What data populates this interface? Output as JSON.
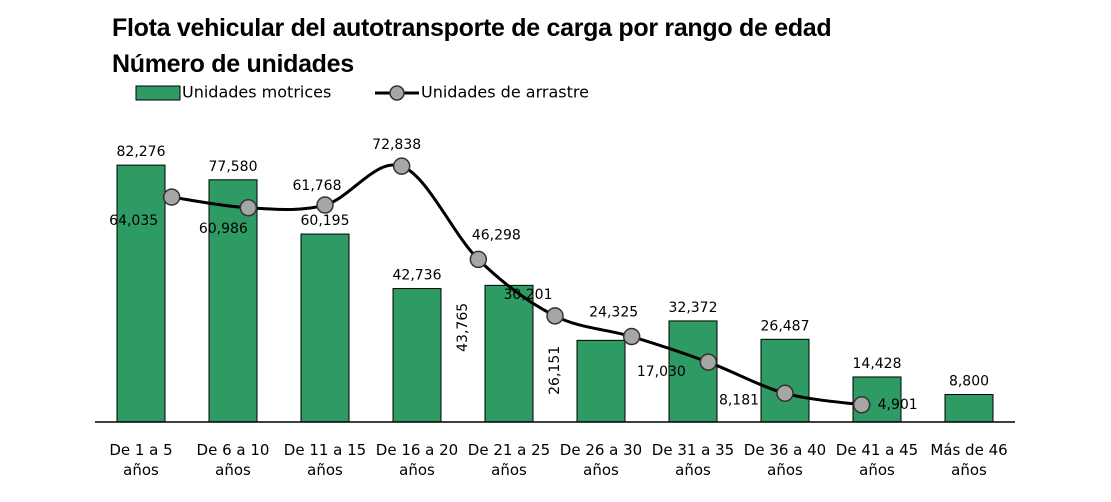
{
  "chart_data": {
    "type": "bar_line",
    "title": "Flota vehicular del autotransporte de carga por rango de edad",
    "subtitle": "Número de unidades",
    "categories": [
      "De 1 a 5 años",
      "De 6 a 10 años",
      "De 11 a 15 años",
      "De 16 a 20 años",
      "De 21 a 25 años",
      "De 26 a 30 años",
      "De 31 a 35 años",
      "De 36 a 40 años",
      "De 41 a 45 años",
      "Más de 46 años"
    ],
    "series": [
      {
        "name": "Unidades motrices",
        "type": "bar",
        "color": "#2e9a64",
        "values": [
          82276,
          77580,
          60195,
          42736,
          43765,
          26151,
          32372,
          26487,
          14428,
          8800
        ],
        "value_labels": [
          "82,276",
          "77,580",
          "60,195",
          "42,736",
          "43,765",
          "26,151",
          "32,372",
          "26,487",
          "14,428",
          "8,800"
        ]
      },
      {
        "name": "Unidades de arrastre",
        "type": "line",
        "axis": "y2",
        "color": "#000000",
        "marker_color": "#a6a6a6",
        "values": [
          64035,
          60986,
          61768,
          72838,
          46298,
          30201,
          24325,
          17030,
          8181,
          4901
        ],
        "value_labels": [
          "64,035",
          "60,986",
          "61,768",
          "72,838",
          "46,298",
          "30,201",
          "24,325",
          "17,030",
          "8,181",
          "4,901"
        ]
      }
    ],
    "ylim": [
      0,
      90000
    ],
    "y2lim": [
      0,
      80000
    ],
    "legend": "top"
  }
}
